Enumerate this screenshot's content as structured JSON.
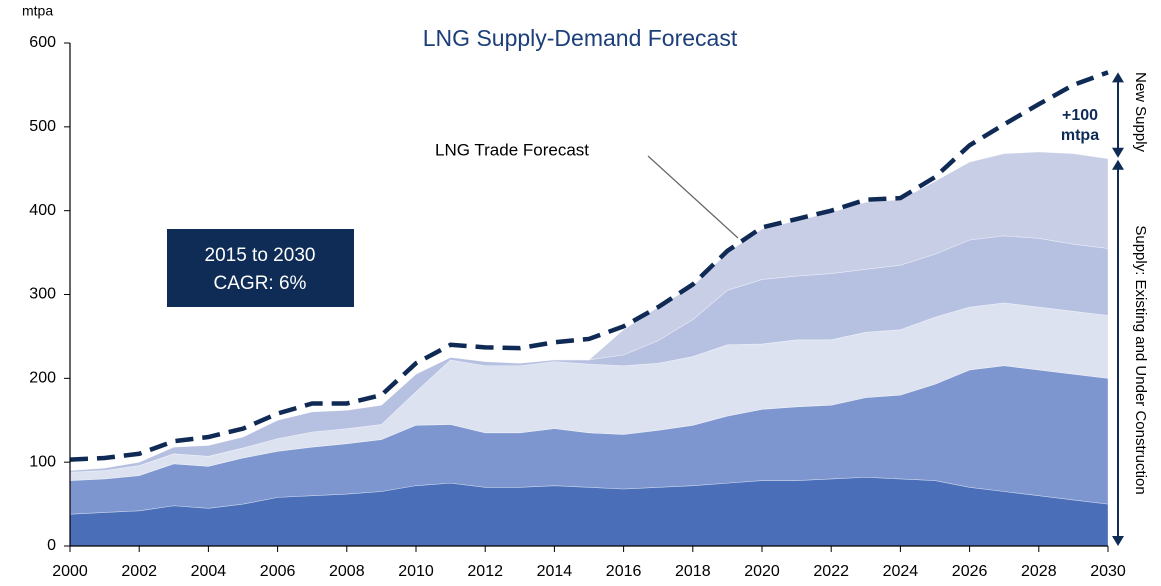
{
  "chart_data": {
    "type": "area",
    "title": "LNG Supply-Demand Forecast",
    "y_label": "mtpa",
    "x": [
      2000,
      2001,
      2002,
      2003,
      2004,
      2005,
      2006,
      2007,
      2008,
      2009,
      2010,
      2011,
      2012,
      2013,
      2014,
      2015,
      2016,
      2017,
      2018,
      2019,
      2020,
      2021,
      2022,
      2023,
      2024,
      2025,
      2026,
      2027,
      2028,
      2029,
      2030
    ],
    "xlim": [
      2000,
      2030
    ],
    "xticks": [
      2000,
      2002,
      2004,
      2006,
      2008,
      2010,
      2012,
      2014,
      2016,
      2018,
      2020,
      2022,
      2024,
      2026,
      2028,
      2030
    ],
    "ylim": [
      0,
      600
    ],
    "yticks": [
      0,
      100,
      200,
      300,
      400,
      500,
      600
    ],
    "stacked": true,
    "series": [
      {
        "color": "#4a6fb8",
        "values": [
          38,
          40,
          42,
          48,
          45,
          50,
          58,
          60,
          62,
          65,
          72,
          75,
          70,
          70,
          72,
          70,
          68,
          70,
          72,
          75,
          78,
          78,
          80,
          82,
          80,
          78,
          70,
          65,
          60,
          55,
          50
        ]
      },
      {
        "color": "#7d96cf",
        "values": [
          40,
          40,
          42,
          50,
          50,
          55,
          55,
          58,
          60,
          62,
          72,
          70,
          65,
          65,
          68,
          65,
          65,
          68,
          72,
          80,
          85,
          88,
          88,
          95,
          100,
          115,
          140,
          150,
          150,
          150,
          150
        ]
      },
      {
        "color": "#dde2f1",
        "values": [
          10,
          10,
          12,
          12,
          12,
          12,
          15,
          18,
          18,
          18,
          40,
          77,
          80,
          80,
          80,
          82,
          82,
          80,
          82,
          85,
          78,
          80,
          78,
          78,
          78,
          80,
          75,
          75,
          75,
          75,
          75
        ]
      },
      {
        "color": "#b6c0e1",
        "values": [
          2,
          3,
          4,
          8,
          13,
          13,
          22,
          24,
          22,
          23,
          21,
          3,
          5,
          3,
          2,
          5,
          13,
          27,
          44,
          65,
          77,
          76,
          79,
          75,
          77,
          75,
          80,
          80,
          82,
          80,
          80
        ]
      },
      {
        "color": "#c9cee7",
        "values": [
          0,
          0,
          0,
          0,
          0,
          0,
          0,
          0,
          0,
          0,
          0,
          0,
          0,
          0,
          0,
          0,
          30,
          40,
          40,
          45,
          60,
          66,
          73,
          80,
          78,
          87,
          93,
          98,
          103,
          108,
          107
        ]
      }
    ],
    "forecast": {
      "name": "LNG Trade Forecast",
      "color": "#0f2a55",
      "dashed": true,
      "values": [
        103,
        105,
        110,
        125,
        130,
        140,
        158,
        170,
        170,
        180,
        218,
        240,
        237,
        236,
        243,
        247,
        262,
        285,
        312,
        352,
        380,
        390,
        400,
        413,
        415,
        440,
        478,
        503,
        527,
        550,
        565
      ]
    },
    "annotations": [
      "2015 to 2030",
      "CAGR: 6%",
      "+100",
      "mtpa",
      "New Supply",
      "Supply: Existing and Under Construction"
    ]
  }
}
